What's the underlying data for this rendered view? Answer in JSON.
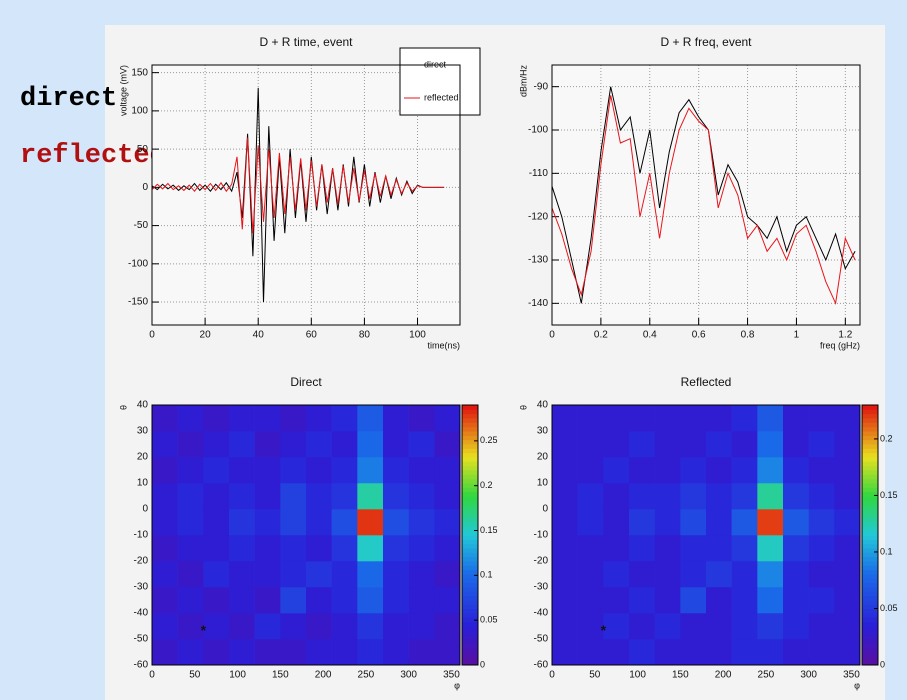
{
  "overlay_labels": [
    "direct",
    "reflected"
  ],
  "chart_data": [
    {
      "type": "line",
      "title": "D + R time, event",
      "x_label": "time(ns)",
      "y_label": "voltage (mV)",
      "xlim": [
        0,
        116
      ],
      "xticks": [
        0,
        20,
        40,
        60,
        80,
        100
      ],
      "ylim": [
        -180,
        160
      ],
      "yticks": [
        -150,
        -100,
        -50,
        0,
        50,
        100,
        150
      ],
      "grid": true,
      "legend": "top-right",
      "x": [
        0,
        2,
        4,
        6,
        8,
        10,
        12,
        14,
        16,
        18,
        20,
        22,
        24,
        26,
        28,
        30,
        32,
        34,
        36,
        38,
        40,
        42,
        44,
        46,
        48,
        50,
        52,
        54,
        56,
        58,
        60,
        62,
        64,
        66,
        68,
        70,
        72,
        74,
        76,
        78,
        80,
        82,
        84,
        86,
        88,
        90,
        92,
        94,
        96,
        98,
        100,
        102,
        104,
        106,
        108,
        110
      ],
      "series": [
        {
          "name": "direct",
          "color": "#000000",
          "values": [
            2,
            -3,
            4,
            -2,
            3,
            -4,
            2,
            -3,
            5,
            -4,
            3,
            -5,
            4,
            -3,
            6,
            -5,
            20,
            -40,
            70,
            -90,
            130,
            -150,
            80,
            -70,
            40,
            -60,
            50,
            -40,
            35,
            -45,
            40,
            -30,
            30,
            -35,
            25,
            -30,
            30,
            -25,
            40,
            -20,
            30,
            -25,
            20,
            -20,
            15,
            -15,
            12,
            -10,
            8,
            -8,
            3,
            0,
            0,
            0,
            0,
            0
          ]
        },
        {
          "name": "reflected",
          "color": "#e8141a",
          "values": [
            -3,
            4,
            -2,
            5,
            -3,
            2,
            -4,
            3,
            -5,
            4,
            -3,
            5,
            -4,
            6,
            -5,
            4,
            40,
            -55,
            65,
            -60,
            55,
            -45,
            50,
            -40,
            45,
            -35,
            40,
            -30,
            38,
            -30,
            35,
            -25,
            30,
            -20,
            25,
            -22,
            28,
            -20,
            25,
            -18,
            22,
            -15,
            18,
            -12,
            15,
            -10,
            10,
            -8,
            6,
            -5,
            2,
            0,
            0,
            0,
            0,
            0
          ]
        }
      ]
    },
    {
      "type": "line",
      "title": "D + R freq, event",
      "x_label": "freq (gHz)",
      "y_label": "dBm/Hz",
      "xlim": [
        0,
        1.26
      ],
      "xticks": [
        0,
        0.2,
        0.4,
        0.6,
        0.8,
        1,
        1.2
      ],
      "ylim": [
        -145,
        -85
      ],
      "yticks": [
        -140,
        -130,
        -120,
        -110,
        -100,
        -90
      ],
      "grid": true,
      "x": [
        0,
        0.04,
        0.08,
        0.12,
        0.16,
        0.2,
        0.24,
        0.28,
        0.32,
        0.36,
        0.4,
        0.44,
        0.48,
        0.52,
        0.56,
        0.6,
        0.64,
        0.68,
        0.72,
        0.76,
        0.8,
        0.84,
        0.88,
        0.92,
        0.96,
        1,
        1.04,
        1.08,
        1.12,
        1.16,
        1.2,
        1.24
      ],
      "series": [
        {
          "name": "direct",
          "color": "#000000",
          "values": [
            -113,
            -120,
            -130,
            -140,
            -125,
            -105,
            -90,
            -100,
            -97,
            -110,
            -100,
            -118,
            -105,
            -96,
            -93,
            -97,
            -100,
            -115,
            -108,
            -112,
            -120,
            -122,
            -125,
            -120,
            -128,
            -122,
            -120,
            -125,
            -130,
            -124,
            -132,
            -128
          ]
        },
        {
          "name": "reflected",
          "color": "#e8141a",
          "values": [
            -118,
            -124,
            -132,
            -138,
            -128,
            -108,
            -92,
            -103,
            -102,
            -120,
            -110,
            -125,
            -110,
            -100,
            -95,
            -98,
            -100,
            -118,
            -110,
            -115,
            -125,
            -122,
            -128,
            -125,
            -130,
            -124,
            -122,
            -128,
            -135,
            -140,
            -125,
            -130
          ]
        }
      ]
    },
    {
      "type": "heatmap",
      "title": "Direct",
      "x_label": "φ",
      "y_label": "θ",
      "xlim": [
        0,
        360
      ],
      "xticks": [
        0,
        50,
        100,
        150,
        200,
        250,
        300,
        350
      ],
      "ylim": [
        -60,
        40
      ],
      "yticks": [
        -60,
        -50,
        -40,
        -30,
        -20,
        -10,
        0,
        10,
        20,
        30,
        40
      ],
      "x_bins": [
        0,
        30,
        60,
        90,
        120,
        150,
        180,
        210,
        240,
        270,
        300,
        330,
        360
      ],
      "y_bins": [
        -60,
        -50,
        -40,
        -30,
        -20,
        -10,
        0,
        10,
        20,
        30,
        40
      ],
      "zlim": [
        0,
        0.29
      ],
      "zticks": [
        0,
        0.05,
        0.1,
        0.15,
        0.2,
        0.25
      ],
      "point": {
        "x": 60,
        "y": -47
      },
      "z": [
        [
          0.03,
          0.04,
          0.03,
          0.04,
          0.03,
          0.03,
          0.04,
          0.04,
          0.05,
          0.04,
          0.03,
          0.03
        ],
        [
          0.04,
          0.03,
          0.04,
          0.03,
          0.05,
          0.04,
          0.03,
          0.04,
          0.06,
          0.04,
          0.04,
          0.03
        ],
        [
          0.03,
          0.04,
          0.03,
          0.04,
          0.03,
          0.07,
          0.04,
          0.05,
          0.09,
          0.05,
          0.04,
          0.04
        ],
        [
          0.04,
          0.03,
          0.05,
          0.04,
          0.04,
          0.05,
          0.06,
          0.05,
          0.1,
          0.05,
          0.04,
          0.03
        ],
        [
          0.03,
          0.04,
          0.04,
          0.05,
          0.04,
          0.05,
          0.04,
          0.06,
          0.15,
          0.06,
          0.05,
          0.04
        ],
        [
          0.04,
          0.05,
          0.04,
          0.06,
          0.05,
          0.07,
          0.05,
          0.08,
          0.28,
          0.08,
          0.06,
          0.05
        ],
        [
          0.04,
          0.05,
          0.04,
          0.05,
          0.04,
          0.07,
          0.05,
          0.06,
          0.16,
          0.06,
          0.05,
          0.04
        ],
        [
          0.03,
          0.04,
          0.05,
          0.04,
          0.04,
          0.05,
          0.04,
          0.05,
          0.11,
          0.05,
          0.04,
          0.04
        ],
        [
          0.04,
          0.03,
          0.04,
          0.05,
          0.03,
          0.04,
          0.05,
          0.04,
          0.1,
          0.04,
          0.05,
          0.03
        ],
        [
          0.03,
          0.04,
          0.03,
          0.04,
          0.04,
          0.03,
          0.04,
          0.05,
          0.09,
          0.04,
          0.03,
          0.04
        ]
      ]
    },
    {
      "type": "heatmap",
      "title": "Reflected",
      "x_label": "φ",
      "y_label": "θ",
      "xlim": [
        0,
        360
      ],
      "xticks": [
        0,
        50,
        100,
        150,
        200,
        250,
        300,
        350
      ],
      "ylim": [
        -60,
        40
      ],
      "yticks": [
        -60,
        -50,
        -40,
        -30,
        -20,
        -10,
        0,
        10,
        20,
        30,
        40
      ],
      "x_bins": [
        0,
        30,
        60,
        90,
        120,
        150,
        180,
        210,
        240,
        270,
        300,
        330,
        360
      ],
      "y_bins": [
        -60,
        -50,
        -40,
        -30,
        -20,
        -10,
        0,
        10,
        20,
        30,
        40
      ],
      "zlim": [
        0,
        0.23
      ],
      "zticks": [
        0,
        0.05,
        0.1,
        0.15,
        0.2
      ],
      "point": {
        "x": 60,
        "y": -47
      },
      "z": [
        [
          0.03,
          0.03,
          0.03,
          0.04,
          0.03,
          0.03,
          0.03,
          0.04,
          0.04,
          0.03,
          0.03,
          0.03
        ],
        [
          0.03,
          0.03,
          0.04,
          0.03,
          0.04,
          0.03,
          0.03,
          0.04,
          0.05,
          0.04,
          0.03,
          0.03
        ],
        [
          0.03,
          0.03,
          0.03,
          0.04,
          0.03,
          0.06,
          0.03,
          0.04,
          0.08,
          0.04,
          0.04,
          0.03
        ],
        [
          0.03,
          0.03,
          0.04,
          0.03,
          0.03,
          0.04,
          0.05,
          0.04,
          0.09,
          0.04,
          0.03,
          0.03
        ],
        [
          0.03,
          0.03,
          0.03,
          0.04,
          0.03,
          0.04,
          0.04,
          0.05,
          0.12,
          0.05,
          0.04,
          0.03
        ],
        [
          0.03,
          0.04,
          0.03,
          0.05,
          0.04,
          0.06,
          0.04,
          0.07,
          0.22,
          0.07,
          0.05,
          0.04
        ],
        [
          0.03,
          0.04,
          0.03,
          0.04,
          0.04,
          0.05,
          0.04,
          0.05,
          0.13,
          0.05,
          0.04,
          0.03
        ],
        [
          0.03,
          0.03,
          0.04,
          0.03,
          0.03,
          0.04,
          0.03,
          0.04,
          0.09,
          0.04,
          0.03,
          0.03
        ],
        [
          0.03,
          0.03,
          0.03,
          0.04,
          0.03,
          0.03,
          0.04,
          0.03,
          0.08,
          0.03,
          0.04,
          0.03
        ],
        [
          0.03,
          0.03,
          0.03,
          0.03,
          0.03,
          0.03,
          0.03,
          0.04,
          0.07,
          0.03,
          0.03,
          0.03
        ]
      ]
    }
  ]
}
